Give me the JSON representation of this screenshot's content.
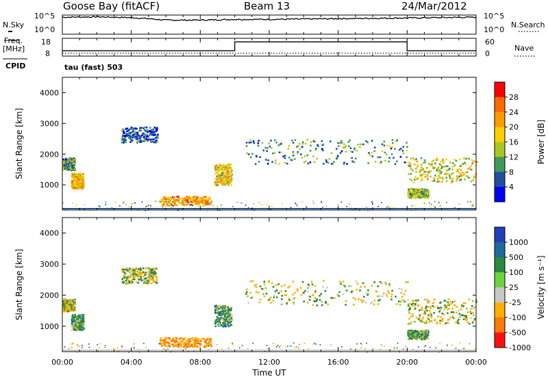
{
  "header": {
    "station": "Goose Bay (fitACF)",
    "beam": "Beam 13",
    "date": "24/Mar/2012"
  },
  "noise_panel": {
    "left_label": "N.Sky",
    "right_label": "N.Search",
    "left_ticks": [
      "10^5",
      "10^0"
    ],
    "right_ticks": [
      "10^5",
      "10^0"
    ]
  },
  "freq_panel": {
    "left_label_1": "Freq.",
    "left_label_2": "[MHz]",
    "left_ticks": [
      "18",
      "8"
    ],
    "right_label": "Nave",
    "right_ticks": [
      "60",
      "0"
    ],
    "cpid_label": "CPID",
    "cpid_value": "tau (fast) 503"
  },
  "axes": {
    "ylabel": "Slant Range [km]",
    "yticks": [
      "4000",
      "3000",
      "2000",
      "1000"
    ],
    "xticks": [
      "00:00",
      "04:00",
      "08:00",
      "12:00",
      "16:00",
      "20:00",
      "00:00"
    ],
    "xlabel": "Time UT"
  },
  "colorbars": {
    "power": {
      "label": "Power [dB]",
      "ticks": [
        "28",
        "24",
        "20",
        "16",
        "12",
        "8",
        "4"
      ],
      "colors": [
        "#ff0000",
        "#ff6a00",
        "#ff9900",
        "#ffd000",
        "#a8c820",
        "#3f9a5a",
        "#1e4fa0",
        "#0000ff"
      ]
    },
    "velocity": {
      "label": "Velocity [m s⁻¹]",
      "ticks": [
        "1000",
        "500",
        "100",
        "25",
        "-25",
        "-100",
        "-500",
        "-1000"
      ],
      "colors": [
        "#1f3fbf",
        "#1e6a9a",
        "#2a8a40",
        "#6dd23c",
        "#c8c8c8",
        "#ffb000",
        "#ff7a00",
        "#ff1010"
      ]
    }
  },
  "chart_data": [
    {
      "type": "line",
      "title": "",
      "series": [
        {
          "name": "N.Sky",
          "x_hours": [
            0,
            2,
            4,
            5,
            6,
            8,
            10,
            12,
            14,
            16,
            18,
            20,
            22,
            24
          ],
          "y_log10": [
            4.7,
            4.8,
            4.6,
            4.3,
            3.9,
            3.9,
            4.1,
            4.1,
            4.2,
            4.3,
            4.4,
            4.5,
            4.6,
            4.7
          ]
        }
      ],
      "xlim": [
        0,
        24
      ]
    },
    {
      "type": "line",
      "title": "",
      "series": [
        {
          "name": "Freq.",
          "x_hours": [
            0,
            10,
            10,
            20,
            20,
            24
          ],
          "y_mhz": [
            11,
            11,
            16,
            16,
            11,
            11
          ]
        },
        {
          "name": "Nave",
          "x_hours": [
            0,
            24
          ],
          "y": [
            10,
            10
          ]
        }
      ],
      "xlim": [
        0,
        24
      ],
      "ylim_left": [
        8,
        18
      ],
      "ylim_right": [
        0,
        60
      ]
    },
    {
      "type": "heatmap",
      "title": "Power",
      "xlabel": "Time UT",
      "ylabel": "Slant Range [km]",
      "xlim_hours": [
        0,
        24
      ],
      "ylim_km": [
        180,
        4500
      ],
      "regions": [
        {
          "t0": 0.0,
          "t1": 0.7,
          "r0": 1500,
          "r1": 1900,
          "value_db": 12
        },
        {
          "t0": 0.5,
          "t1": 1.2,
          "r0": 900,
          "r1": 1400,
          "value_db": 22
        },
        {
          "t0": 3.4,
          "t1": 5.5,
          "r0": 2400,
          "r1": 2900,
          "value_db": 8
        },
        {
          "t0": 5.6,
          "t1": 8.6,
          "r0": 350,
          "r1": 650,
          "value_db": 24
        },
        {
          "t0": 8.8,
          "t1": 9.8,
          "r0": 1000,
          "r1": 1700,
          "value_db": 20
        },
        {
          "t0": 10.6,
          "t1": 20.0,
          "r0": 1700,
          "r1": 2500,
          "value_db": 12
        },
        {
          "t0": 20.0,
          "t1": 24.0,
          "r0": 1100,
          "r1": 1900,
          "value_db": 18
        },
        {
          "t0": 20.0,
          "t1": 21.2,
          "r0": 600,
          "r1": 900,
          "value_db": 16
        }
      ]
    },
    {
      "type": "heatmap",
      "title": "Velocity",
      "xlabel": "Time UT",
      "ylabel": "Slant Range [km]",
      "xlim_hours": [
        0,
        24
      ],
      "ylim_km": [
        180,
        4500
      ],
      "regions": [
        {
          "t0": 0.0,
          "t1": 0.7,
          "r0": 1500,
          "r1": 1900,
          "value_ms": 0
        },
        {
          "t0": 0.5,
          "t1": 1.2,
          "r0": 900,
          "r1": 1400,
          "value_ms": 150
        },
        {
          "t0": 3.4,
          "t1": 5.5,
          "r0": 2400,
          "r1": 2900,
          "value_ms": 0
        },
        {
          "t0": 5.6,
          "t1": 8.6,
          "r0": 350,
          "r1": 650,
          "value_ms": -300
        },
        {
          "t0": 8.8,
          "t1": 9.8,
          "r0": 1000,
          "r1": 1700,
          "value_ms": 150
        },
        {
          "t0": 10.6,
          "t1": 20.0,
          "r0": 1700,
          "r1": 2500,
          "value_ms": 0
        },
        {
          "t0": 20.0,
          "t1": 24.0,
          "r0": 1100,
          "r1": 1900,
          "value_ms": 0
        },
        {
          "t0": 20.0,
          "t1": 21.2,
          "r0": 600,
          "r1": 900,
          "value_ms": 150
        }
      ]
    }
  ]
}
